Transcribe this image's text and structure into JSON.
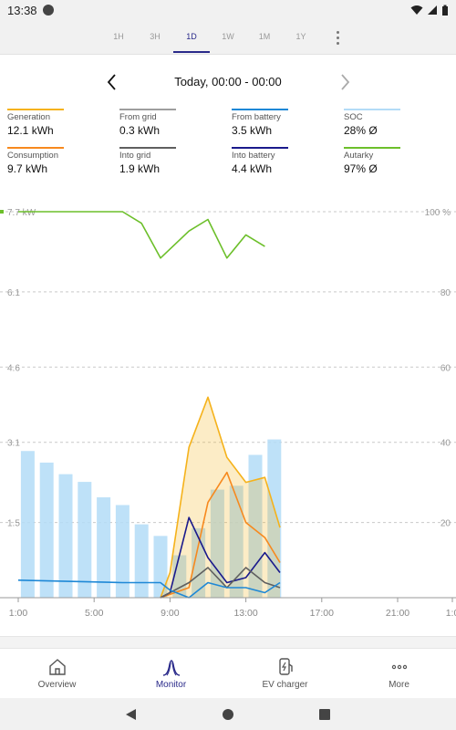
{
  "status_bar": {
    "time": "13:38"
  },
  "range_tabs": [
    {
      "label": "1H",
      "active": false
    },
    {
      "label": "3H",
      "active": false
    },
    {
      "label": "1D",
      "active": true
    },
    {
      "label": "1W",
      "active": false
    },
    {
      "label": "1M",
      "active": false
    },
    {
      "label": "1Y",
      "active": false
    }
  ],
  "date_nav": {
    "label": "Today, 00:00 - 00:00"
  },
  "legend": [
    {
      "name": "Generation",
      "value": "12.1 kWh",
      "color": "#f5b21b"
    },
    {
      "name": "From grid",
      "value": "0.3 kWh",
      "color": "#9e9e9e"
    },
    {
      "name": "From battery",
      "value": "3.5 kWh",
      "color": "#1e88d6"
    },
    {
      "name": "SOC",
      "value": "28% Ø",
      "color": "#b3dcf7"
    },
    {
      "name": "Consumption",
      "value": "9.7 kWh",
      "color": "#f7891e"
    },
    {
      "name": "Into grid",
      "value": "1.9 kWh",
      "color": "#5f5f5f"
    },
    {
      "name": "Into battery",
      "value": "4.4 kWh",
      "color": "#1a1a8c"
    },
    {
      "name": "Autarky",
      "value": "97% Ø",
      "color": "#6cbf2a"
    }
  ],
  "chart_data": {
    "type": "line",
    "x_tick_labels": [
      "1:00",
      "5:00",
      "9:00",
      "13:00",
      "17:00",
      "21:00",
      "1:0"
    ],
    "y_left_ticks": [
      "7.7 kW",
      "6.1",
      "4.6",
      "3.1",
      "1.5"
    ],
    "y_right_ticks": [
      "100 %",
      "80",
      "60",
      "40",
      "20"
    ],
    "y_left_range": [
      0,
      7.7
    ],
    "y_right_range": [
      0,
      100
    ],
    "grid": true,
    "soc_bars": {
      "name": "SOC",
      "color": "#b3dcf7",
      "x": [
        0.5,
        1.5,
        2.5,
        3.5,
        4.5,
        5.5,
        6.5,
        7.5,
        8.5,
        9.5,
        10.5,
        11.5,
        12.5,
        13.5
      ],
      "values": [
        38,
        35,
        32,
        30,
        26,
        24,
        19,
        16,
        11,
        18,
        28,
        29,
        37,
        41
      ]
    },
    "series": [
      {
        "name": "Autarky",
        "axis": "right",
        "color": "#6cbf2a",
        "x": [
          0,
          5.5,
          6.5,
          7.5,
          9,
          10,
          11,
          12,
          13
        ],
        "y": [
          100,
          100,
          97,
          88,
          95,
          98,
          88,
          94,
          91
        ]
      },
      {
        "name": "Generation",
        "axis": "left",
        "color": "#f5b21b",
        "fill": true,
        "x": [
          7.5,
          8,
          9,
          10,
          11,
          12,
          13,
          13.8
        ],
        "y": [
          0,
          0.5,
          3.0,
          4.0,
          2.8,
          2.3,
          2.4,
          1.4
        ]
      },
      {
        "name": "Consumption",
        "axis": "left",
        "color": "#f7891e",
        "x": [
          7.5,
          9,
          10,
          11,
          12,
          13,
          13.8
        ],
        "y": [
          0,
          0.2,
          1.9,
          2.5,
          1.5,
          1.2,
          0.7
        ]
      },
      {
        "name": "Into battery",
        "axis": "left",
        "color": "#1a1a8c",
        "x": [
          7.5,
          8,
          9,
          10,
          11,
          12,
          13,
          13.8
        ],
        "y": [
          0,
          0.1,
          1.6,
          0.8,
          0.3,
          0.4,
          0.9,
          0.5
        ]
      },
      {
        "name": "Into grid",
        "axis": "left",
        "color": "#5f5f5f",
        "x": [
          7.5,
          9,
          10,
          11,
          12,
          13,
          13.8
        ],
        "y": [
          0,
          0.3,
          0.6,
          0.2,
          0.6,
          0.3,
          0.2
        ]
      },
      {
        "name": "From battery",
        "axis": "left",
        "color": "#1e88d6",
        "x": [
          0,
          5.5,
          6.5,
          7,
          7.5,
          8,
          9,
          10,
          11,
          12,
          13,
          13.8
        ],
        "y": [
          0.35,
          0.3,
          0.3,
          0.3,
          0.3,
          0.15,
          0.0,
          0.3,
          0.2,
          0.2,
          0.1,
          0.3
        ]
      }
    ]
  },
  "bottom_nav": [
    {
      "label": "Overview",
      "icon": "home-icon",
      "active": false
    },
    {
      "label": "Monitor",
      "icon": "monitor-chart-icon",
      "active": true
    },
    {
      "label": "EV charger",
      "icon": "ev-charger-icon",
      "active": false
    },
    {
      "label": "More",
      "icon": "more-dots-icon",
      "active": false
    }
  ]
}
